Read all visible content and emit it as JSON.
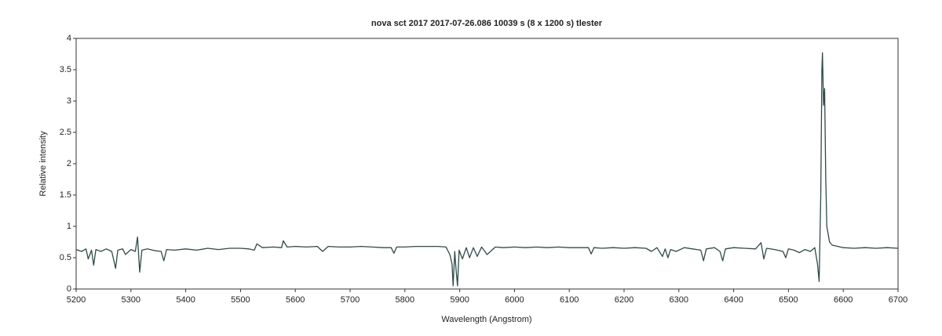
{
  "chart_data": {
    "type": "line",
    "title": "nova sct 2017   2017-07-26.086   10039 s (8 x 1200 s)   tlester",
    "xlabel": "Wavelength (Angstrom)",
    "ylabel": "Relative intensity",
    "xlim": [
      5200,
      6700
    ],
    "ylim": [
      0,
      4
    ],
    "xticks": [
      5200,
      5300,
      5400,
      5500,
      5600,
      5700,
      5800,
      5900,
      6000,
      6100,
      6200,
      6300,
      6400,
      6500,
      6600,
      6700
    ],
    "yticks": [
      0,
      0.5,
      1,
      1.5,
      2,
      2.5,
      3,
      3.5,
      4
    ],
    "grid": false,
    "series": [
      {
        "color": "#2f4a48",
        "x": [
          5200,
          5210,
          5218,
          5222,
          5228,
          5232,
          5236,
          5245,
          5255,
          5265,
          5272,
          5276,
          5285,
          5290,
          5300,
          5308,
          5312,
          5316,
          5320,
          5330,
          5345,
          5355,
          5360,
          5365,
          5380,
          5400,
          5420,
          5440,
          5460,
          5480,
          5500,
          5515,
          5525,
          5530,
          5540,
          5560,
          5575,
          5578,
          5585,
          5600,
          5620,
          5640,
          5650,
          5660,
          5680,
          5700,
          5720,
          5740,
          5760,
          5775,
          5780,
          5785,
          5800,
          5820,
          5840,
          5860,
          5875,
          5882,
          5886,
          5888,
          5891,
          5893,
          5896,
          5899,
          5905,
          5912,
          5918,
          5925,
          5932,
          5940,
          5950,
          5965,
          5980,
          6000,
          6020,
          6040,
          6060,
          6080,
          6100,
          6120,
          6135,
          6140,
          6145,
          6160,
          6180,
          6200,
          6220,
          6240,
          6250,
          6260,
          6270,
          6275,
          6280,
          6285,
          6295,
          6310,
          6325,
          6340,
          6345,
          6350,
          6365,
          6375,
          6380,
          6385,
          6400,
          6420,
          6440,
          6450,
          6455,
          6460,
          6475,
          6490,
          6495,
          6500,
          6510,
          6520,
          6530,
          6540,
          6548,
          6553,
          6556,
          6559,
          6561,
          6562,
          6563,
          6564,
          6566,
          6568,
          6570,
          6575,
          6580,
          6590,
          6600,
          6620,
          6640,
          6660,
          6680,
          6700
        ],
        "values": [
          0.63,
          0.6,
          0.64,
          0.48,
          0.62,
          0.38,
          0.63,
          0.6,
          0.64,
          0.6,
          0.33,
          0.62,
          0.64,
          0.55,
          0.63,
          0.6,
          0.83,
          0.27,
          0.62,
          0.64,
          0.61,
          0.6,
          0.45,
          0.63,
          0.62,
          0.64,
          0.62,
          0.65,
          0.63,
          0.65,
          0.65,
          0.64,
          0.62,
          0.72,
          0.66,
          0.67,
          0.66,
          0.77,
          0.67,
          0.68,
          0.67,
          0.68,
          0.6,
          0.68,
          0.67,
          0.67,
          0.68,
          0.67,
          0.66,
          0.66,
          0.57,
          0.67,
          0.67,
          0.68,
          0.68,
          0.68,
          0.67,
          0.55,
          0.4,
          0.05,
          0.6,
          0.35,
          0.05,
          0.62,
          0.48,
          0.66,
          0.5,
          0.66,
          0.52,
          0.67,
          0.55,
          0.67,
          0.66,
          0.67,
          0.66,
          0.67,
          0.66,
          0.67,
          0.66,
          0.66,
          0.66,
          0.56,
          0.66,
          0.65,
          0.66,
          0.65,
          0.66,
          0.65,
          0.6,
          0.66,
          0.52,
          0.64,
          0.5,
          0.63,
          0.6,
          0.66,
          0.64,
          0.62,
          0.45,
          0.64,
          0.66,
          0.6,
          0.45,
          0.64,
          0.66,
          0.65,
          0.64,
          0.74,
          0.48,
          0.65,
          0.63,
          0.6,
          0.5,
          0.64,
          0.62,
          0.58,
          0.63,
          0.6,
          0.66,
          0.4,
          0.12,
          1.5,
          3.5,
          3.77,
          3.4,
          2.93,
          3.2,
          1.8,
          1.0,
          0.75,
          0.7,
          0.68,
          0.66,
          0.65,
          0.66,
          0.65,
          0.66,
          0.65
        ]
      }
    ]
  }
}
